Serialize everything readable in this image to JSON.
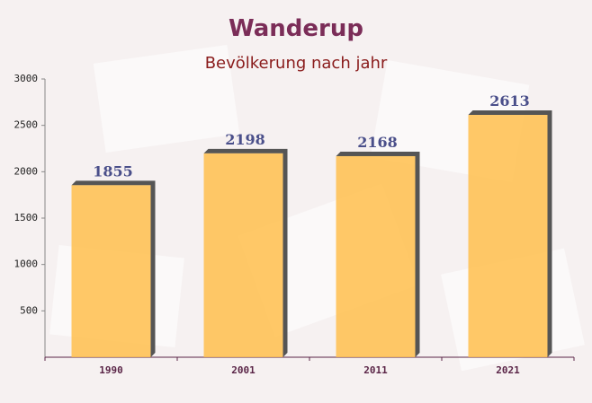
{
  "chart_data": {
    "type": "bar",
    "title": "Wanderup",
    "subtitle": "Bevölkerung nach jahr",
    "categories": [
      "1990",
      "2001",
      "2011",
      "2021"
    ],
    "values": [
      1855,
      2198,
      2168,
      2613
    ],
    "color": "#ffc04d",
    "ylim": [
      0,
      3000
    ],
    "yticks": [
      500,
      1000,
      1500,
      2000,
      2500,
      3000
    ]
  }
}
